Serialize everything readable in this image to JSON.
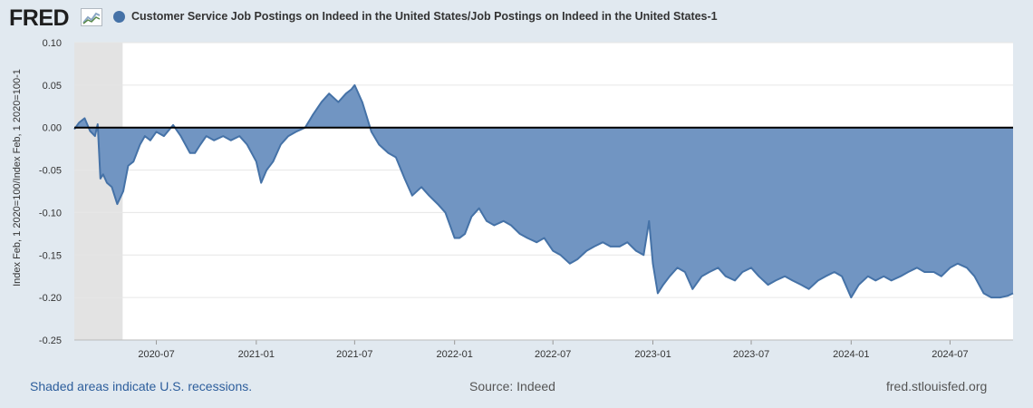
{
  "header": {
    "logo_text": "FRED",
    "title": "Customer Service Job Postings on Indeed in the United States/Job Postings on Indeed in the United States-1"
  },
  "colors": {
    "series": "#4572a7",
    "fill": "#7195c2",
    "recession": "#e3e3e3",
    "background": "#e1e9f0",
    "link": "#2d5e9c"
  },
  "footer": {
    "recession_note": "Shaded areas indicate U.S. recessions.",
    "source": "Source: Indeed",
    "site": "fred.stlouisfed.org"
  },
  "chart_data": {
    "type": "area",
    "title": "Customer Service Job Postings on Indeed in the United States/Job Postings on Indeed in the United States-1",
    "ylabel": "Index Feb, 1 2020=100/Index Feb, 1 2020=100-1",
    "xlabel": "",
    "ylim": [
      -0.25,
      0.1
    ],
    "xlim": [
      "2020-02-01",
      "2024-10-25"
    ],
    "yticks": [
      "0.10",
      "0.05",
      "0.00",
      "-0.05",
      "-0.10",
      "-0.15",
      "-0.20",
      "-0.25"
    ],
    "xticks": [
      "2020-07",
      "2021-01",
      "2021-07",
      "2022-01",
      "2022-07",
      "2023-01",
      "2023-07",
      "2024-01",
      "2024-07"
    ],
    "grid": true,
    "recession_band": [
      "2020-02-01",
      "2020-04-30"
    ],
    "series": [
      {
        "x": [
          "2020-02-01",
          "2020-02-10",
          "2020-02-20",
          "2020-03-01",
          "2020-03-10",
          "2020-03-15",
          "2020-03-20",
          "2020-03-25",
          "2020-04-01",
          "2020-04-10",
          "2020-04-20",
          "2020-05-01",
          "2020-05-10",
          "2020-05-20",
          "2020-06-01",
          "2020-06-10",
          "2020-06-20",
          "2020-07-01",
          "2020-07-15",
          "2020-08-01",
          "2020-08-15",
          "2020-09-01",
          "2020-09-10",
          "2020-09-20",
          "2020-10-01",
          "2020-10-15",
          "2020-11-01",
          "2020-11-15",
          "2020-12-01",
          "2020-12-15",
          "2021-01-01",
          "2021-01-10",
          "2021-01-20",
          "2021-02-01",
          "2021-02-15",
          "2021-03-01",
          "2021-03-15",
          "2021-04-01",
          "2021-04-15",
          "2021-05-01",
          "2021-05-15",
          "2021-06-01",
          "2021-06-15",
          "2021-06-25",
          "2021-07-01",
          "2021-07-15",
          "2021-08-01",
          "2021-08-15",
          "2021-09-01",
          "2021-09-15",
          "2021-10-01",
          "2021-10-15",
          "2021-11-01",
          "2021-11-15",
          "2021-12-01",
          "2021-12-15",
          "2022-01-01",
          "2022-01-10",
          "2022-01-20",
          "2022-02-01",
          "2022-02-15",
          "2022-03-01",
          "2022-03-15",
          "2022-04-01",
          "2022-04-15",
          "2022-05-01",
          "2022-05-15",
          "2022-06-01",
          "2022-06-15",
          "2022-07-01",
          "2022-07-15",
          "2022-08-01",
          "2022-08-15",
          "2022-09-01",
          "2022-09-15",
          "2022-10-01",
          "2022-10-15",
          "2022-11-01",
          "2022-11-15",
          "2022-12-01",
          "2022-12-15",
          "2022-12-25",
          "2023-01-01",
          "2023-01-10",
          "2023-01-20",
          "2023-02-01",
          "2023-02-15",
          "2023-03-01",
          "2023-03-15",
          "2023-04-01",
          "2023-04-15",
          "2023-05-01",
          "2023-05-15",
          "2023-06-01",
          "2023-06-15",
          "2023-07-01",
          "2023-07-15",
          "2023-08-01",
          "2023-08-15",
          "2023-09-01",
          "2023-09-15",
          "2023-10-01",
          "2023-10-15",
          "2023-11-01",
          "2023-11-15",
          "2023-12-01",
          "2023-12-15",
          "2024-01-01",
          "2024-01-15",
          "2024-02-01",
          "2024-02-15",
          "2024-03-01",
          "2024-03-15",
          "2024-04-01",
          "2024-04-15",
          "2024-05-01",
          "2024-05-15",
          "2024-06-01",
          "2024-06-15",
          "2024-07-01",
          "2024-07-15",
          "2024-08-01",
          "2024-08-15",
          "2024-09-01",
          "2024-09-15",
          "2024-10-01",
          "2024-10-15",
          "2024-10-25"
        ],
        "values": [
          -0.002,
          0.006,
          0.011,
          -0.004,
          -0.01,
          0.004,
          -0.06,
          -0.055,
          -0.065,
          -0.07,
          -0.09,
          -0.075,
          -0.045,
          -0.04,
          -0.02,
          -0.01,
          -0.015,
          -0.005,
          -0.01,
          0.003,
          -0.01,
          -0.03,
          -0.03,
          -0.02,
          -0.01,
          -0.015,
          -0.01,
          -0.015,
          -0.01,
          -0.02,
          -0.04,
          -0.065,
          -0.05,
          -0.04,
          -0.02,
          -0.01,
          -0.005,
          0.0,
          0.015,
          0.03,
          0.04,
          0.03,
          0.04,
          0.045,
          0.05,
          0.03,
          -0.005,
          -0.02,
          -0.03,
          -0.035,
          -0.06,
          -0.08,
          -0.07,
          -0.08,
          -0.09,
          -0.1,
          -0.13,
          -0.13,
          -0.125,
          -0.105,
          -0.095,
          -0.11,
          -0.115,
          -0.11,
          -0.115,
          -0.125,
          -0.13,
          -0.135,
          -0.13,
          -0.145,
          -0.15,
          -0.16,
          -0.155,
          -0.145,
          -0.14,
          -0.135,
          -0.14,
          -0.14,
          -0.135,
          -0.145,
          -0.15,
          -0.11,
          -0.16,
          -0.195,
          -0.185,
          -0.175,
          -0.165,
          -0.17,
          -0.19,
          -0.175,
          -0.17,
          -0.165,
          -0.175,
          -0.18,
          -0.17,
          -0.165,
          -0.175,
          -0.185,
          -0.18,
          -0.175,
          -0.18,
          -0.185,
          -0.19,
          -0.18,
          -0.175,
          -0.17,
          -0.175,
          -0.2,
          -0.185,
          -0.175,
          -0.18,
          -0.175,
          -0.18,
          -0.175,
          -0.17,
          -0.165,
          -0.17,
          -0.17,
          -0.175,
          -0.165,
          -0.16,
          -0.165,
          -0.175,
          -0.195,
          -0.2,
          -0.2,
          -0.198,
          -0.195
        ]
      }
    ]
  }
}
